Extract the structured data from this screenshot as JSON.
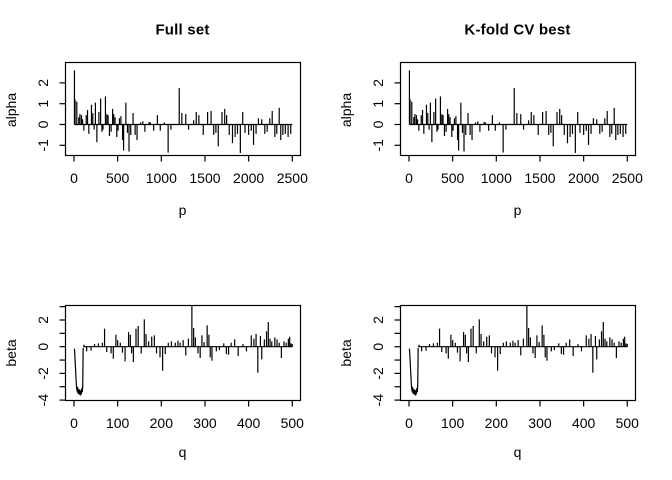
{
  "colors": {
    "foreground": "#000000",
    "background": "#ffffff"
  },
  "panels": [
    {
      "title": "Full set",
      "xlabel": "p",
      "ylabel": "alpha",
      "chart": "alpha"
    },
    {
      "title": "K-fold CV best",
      "xlabel": "p",
      "ylabel": "alpha",
      "chart": "alpha"
    },
    {
      "title": "",
      "xlabel": "q",
      "ylabel": "beta",
      "chart": "beta"
    },
    {
      "title": "",
      "xlabel": "q",
      "ylabel": "beta",
      "chart": "beta"
    }
  ],
  "chart_data": [
    {
      "id": "alpha",
      "type": "line",
      "title": "alpha coefficients vs p (identical in 'Full set' and 'K-fold CV best' columns)",
      "xlabel": "p",
      "ylabel": "alpha",
      "xlim": [
        -100,
        2600
      ],
      "ylim": [
        -1.5,
        3.0
      ],
      "xticks": [
        0,
        500,
        1000,
        1500,
        2000,
        2500
      ],
      "yticks": [
        -1,
        0,
        1,
        2
      ],
      "yticks_minor": [],
      "baseline": 0,
      "baseline_range": [
        5,
        2500
      ],
      "grid": false,
      "legend": null,
      "spikes": [
        [
          5,
          2.6
        ],
        [
          12,
          1.2
        ],
        [
          32,
          1.1
        ],
        [
          55,
          0.35
        ],
        [
          68,
          0.5
        ],
        [
          86,
          0.45
        ],
        [
          98,
          0.25
        ],
        [
          113,
          -0.3
        ],
        [
          140,
          0.45
        ],
        [
          155,
          0.7
        ],
        [
          170,
          -0.45
        ],
        [
          200,
          0.95
        ],
        [
          215,
          0.55
        ],
        [
          230,
          -0.25
        ],
        [
          245,
          1.05
        ],
        [
          262,
          -0.85
        ],
        [
          285,
          0.6
        ],
        [
          305,
          1.25
        ],
        [
          320,
          -0.35
        ],
        [
          332,
          -0.25
        ],
        [
          360,
          1.35
        ],
        [
          376,
          0.5
        ],
        [
          390,
          0.45
        ],
        [
          406,
          -0.55
        ],
        [
          425,
          -0.35
        ],
        [
          442,
          0.75
        ],
        [
          455,
          0.5
        ],
        [
          470,
          0.35
        ],
        [
          490,
          -0.6
        ],
        [
          505,
          -0.3
        ],
        [
          520,
          0.3
        ],
        [
          537,
          0.4
        ],
        [
          556,
          -0.75
        ],
        [
          568,
          -1.25
        ],
        [
          594,
          1.05
        ],
        [
          612,
          -0.4
        ],
        [
          630,
          -1.3
        ],
        [
          650,
          -0.5
        ],
        [
          676,
          0.55
        ],
        [
          700,
          -0.5
        ],
        [
          722,
          -0.75
        ],
        [
          762,
          0.1
        ],
        [
          788,
          0.15
        ],
        [
          812,
          -0.35
        ],
        [
          860,
          0.12
        ],
        [
          875,
          0.1
        ],
        [
          912,
          -0.3
        ],
        [
          955,
          0.45
        ],
        [
          988,
          -0.3
        ],
        [
          1035,
          0.1
        ],
        [
          1078,
          -1.35
        ],
        [
          1110,
          -0.25
        ],
        [
          1205,
          1.75
        ],
        [
          1235,
          0.55
        ],
        [
          1280,
          0.5
        ],
        [
          1312,
          -0.25
        ],
        [
          1370,
          0.2
        ],
        [
          1400,
          0.6
        ],
        [
          1430,
          0.45
        ],
        [
          1480,
          -0.5
        ],
        [
          1530,
          0.6
        ],
        [
          1570,
          0.65
        ],
        [
          1600,
          -0.5
        ],
        [
          1625,
          -0.4
        ],
        [
          1652,
          -1.05
        ],
        [
          1695,
          0.6
        ],
        [
          1726,
          0.75
        ],
        [
          1748,
          0.45
        ],
        [
          1778,
          -0.5
        ],
        [
          1815,
          -0.9
        ],
        [
          1845,
          -0.6
        ],
        [
          1872,
          -0.45
        ],
        [
          1905,
          -1.37
        ],
        [
          1932,
          0.6
        ],
        [
          1958,
          -0.4
        ],
        [
          2000,
          -0.5
        ],
        [
          2030,
          -0.3
        ],
        [
          2056,
          -0.98
        ],
        [
          2085,
          -0.45
        ],
        [
          2112,
          0.3
        ],
        [
          2150,
          0.25
        ],
        [
          2185,
          -0.45
        ],
        [
          2212,
          -0.35
        ],
        [
          2242,
          0.3
        ],
        [
          2270,
          0.65
        ],
        [
          2300,
          -0.6
        ],
        [
          2322,
          -0.45
        ],
        [
          2350,
          0.8
        ],
        [
          2368,
          -0.75
        ],
        [
          2392,
          -0.5
        ],
        [
          2420,
          -0.45
        ],
        [
          2452,
          -0.6
        ],
        [
          2482,
          -0.45
        ]
      ]
    },
    {
      "id": "beta",
      "type": "line",
      "title": "beta coefficients vs q (identical in both columns)",
      "xlabel": "q",
      "ylabel": "beta",
      "xlim": [
        -20,
        520
      ],
      "ylim": [
        -4.0,
        3.1
      ],
      "xticks": [
        0,
        100,
        200,
        300,
        400,
        500
      ],
      "yticks": [
        -4,
        -2,
        0,
        2
      ],
      "yticks_minor": [
        -3,
        -1,
        1,
        3
      ],
      "baseline": 0,
      "baseline_range": [
        21,
        500
      ],
      "grid": false,
      "legend": null,
      "lead_line": [
        [
          1,
          -0.15
        ],
        [
          2,
          -0.7
        ],
        [
          3,
          -1.3
        ],
        [
          4,
          -2.0
        ],
        [
          5,
          -2.6
        ],
        [
          6,
          -3.1
        ],
        [
          7,
          -3.35
        ],
        [
          8,
          -3.0
        ],
        [
          9,
          -3.5
        ],
        [
          10,
          -3.15
        ],
        [
          11,
          -3.55
        ],
        [
          12,
          -3.2
        ],
        [
          13,
          -3.6
        ],
        [
          14,
          -3.25
        ],
        [
          15,
          -3.65
        ],
        [
          16,
          -3.3
        ],
        [
          17,
          -3.55
        ],
        [
          18,
          -3.1
        ],
        [
          19,
          -3.4
        ],
        [
          20,
          -2.9
        ],
        [
          21,
          -0.1
        ]
      ],
      "spikes": [
        [
          23,
          0.15
        ],
        [
          29,
          -0.35
        ],
        [
          39,
          -0.3
        ],
        [
          47,
          0.2
        ],
        [
          56,
          0.25
        ],
        [
          65,
          0.3
        ],
        [
          70,
          1.35
        ],
        [
          75,
          -0.4
        ],
        [
          85,
          -0.5
        ],
        [
          90,
          -0.9
        ],
        [
          96,
          0.9
        ],
        [
          100,
          0.5
        ],
        [
          106,
          0.3
        ],
        [
          111,
          -0.45
        ],
        [
          117,
          -1.1
        ],
        [
          125,
          1.1
        ],
        [
          129,
          0.9
        ],
        [
          132,
          -0.5
        ],
        [
          136,
          -1.15
        ],
        [
          142,
          1.35
        ],
        [
          147,
          1.55
        ],
        [
          154,
          -0.5
        ],
        [
          161,
          2.05
        ],
        [
          165,
          0.95
        ],
        [
          171,
          0.4
        ],
        [
          178,
          0.75
        ],
        [
          184,
          0.85
        ],
        [
          189,
          -0.5
        ],
        [
          197,
          -0.8
        ],
        [
          203,
          -1.8
        ],
        [
          209,
          -0.55
        ],
        [
          216,
          0.3
        ],
        [
          223,
          0.4
        ],
        [
          232,
          0.3
        ],
        [
          238,
          0.45
        ],
        [
          243,
          0.3
        ],
        [
          250,
          0.5
        ],
        [
          256,
          -0.65
        ],
        [
          262,
          0.6
        ],
        [
          270,
          3.05
        ],
        [
          274,
          1.4
        ],
        [
          278,
          0.7
        ],
        [
          284,
          -0.5
        ],
        [
          289,
          -0.85
        ],
        [
          293,
          0.85
        ],
        [
          298,
          0.35
        ],
        [
          305,
          1.6
        ],
        [
          309,
          0.9
        ],
        [
          312,
          -0.8
        ],
        [
          316,
          -1.05
        ],
        [
          326,
          -0.35
        ],
        [
          333,
          -0.25
        ],
        [
          343,
          0.25
        ],
        [
          349,
          -0.55
        ],
        [
          354,
          -0.6
        ],
        [
          360,
          0.3
        ],
        [
          368,
          0.55
        ],
        [
          376,
          -0.7
        ],
        [
          387,
          0.2
        ],
        [
          395,
          -0.35
        ],
        [
          406,
          0.85
        ],
        [
          412,
          0.6
        ],
        [
          417,
          0.95
        ],
        [
          421,
          -1.95
        ],
        [
          427,
          0.8
        ],
        [
          430,
          -0.95
        ],
        [
          436,
          0.55
        ],
        [
          441,
          1.15
        ],
        [
          445,
          1.85
        ],
        [
          449,
          0.6
        ],
        [
          453,
          0.4
        ],
        [
          460,
          0.7
        ],
        [
          465,
          0.55
        ],
        [
          470,
          0.3
        ],
        [
          475,
          -0.85
        ],
        [
          481,
          0.4
        ],
        [
          486,
          0.3
        ],
        [
          491,
          0.6
        ],
        [
          494,
          0.75
        ],
        [
          497,
          0.25
        ],
        [
          500,
          0.2
        ]
      ]
    }
  ]
}
